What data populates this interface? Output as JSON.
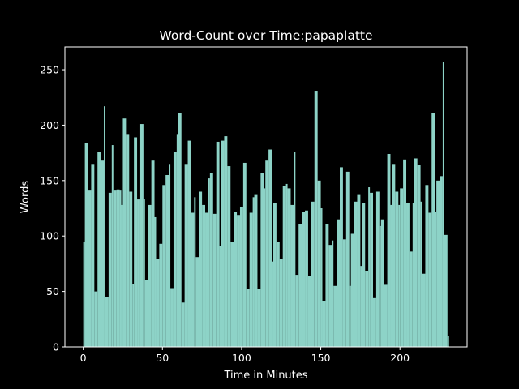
{
  "chart_data": {
    "type": "bar",
    "title": "Word-Count over Time:papaplatte",
    "xlabel": "Time in Minutes",
    "ylabel": "Words",
    "color": "#8dd3c7",
    "x": [
      0,
      1,
      3,
      5,
      7,
      9,
      11,
      13,
      14,
      16,
      18,
      19,
      21,
      23,
      24,
      25,
      27,
      29,
      31,
      32,
      34,
      36,
      38,
      39,
      41,
      43,
      45,
      46,
      48,
      50,
      52,
      54,
      55,
      57,
      59,
      60,
      62,
      64,
      66,
      68,
      70,
      71,
      73,
      75,
      77,
      79,
      80,
      82,
      84,
      86,
      87,
      89,
      91,
      93,
      95,
      97,
      99,
      101,
      103,
      105,
      107,
      108,
      110,
      112,
      114,
      115,
      117,
      119,
      120,
      122,
      124,
      126,
      128,
      129,
      131,
      133,
      134,
      136,
      138,
      140,
      142,
      144,
      146,
      148,
      150,
      151,
      153,
      155,
      157,
      158,
      160,
      162,
      164,
      166,
      168,
      169,
      171,
      173,
      175,
      176,
      178,
      180,
      181,
      183,
      185,
      187,
      188,
      190,
      192,
      194,
      195,
      197,
      199,
      200,
      202,
      204,
      206,
      208,
      209,
      211,
      213,
      214,
      216,
      218,
      220,
      222,
      223,
      225,
      227,
      228,
      230
    ],
    "values": [
      95,
      184,
      141,
      165,
      50,
      176,
      168,
      217,
      45,
      139,
      182,
      141,
      142,
      141,
      128,
      206,
      192,
      140,
      57,
      189,
      133,
      201,
      133,
      60,
      128,
      168,
      117,
      79,
      93,
      146,
      155,
      165,
      53,
      176,
      192,
      211,
      40,
      165,
      186,
      121,
      135,
      81,
      140,
      128,
      121,
      152,
      157,
      120,
      185,
      91,
      186,
      190,
      163,
      95,
      122,
      119,
      126,
      166,
      52,
      121,
      135,
      137,
      52,
      157,
      143,
      168,
      178,
      77,
      130,
      95,
      79,
      145,
      147,
      143,
      128,
      176,
      65,
      111,
      122,
      123,
      64,
      131,
      231,
      150,
      125,
      41,
      111,
      92,
      96,
      55,
      115,
      162,
      97,
      158,
      55,
      102,
      131,
      137,
      73,
      130,
      68,
      144,
      139,
      44,
      140,
      109,
      115,
      56,
      174,
      128,
      165,
      140,
      128,
      143,
      169,
      130,
      86,
      130,
      170,
      164,
      131,
      66,
      146,
      121,
      211,
      122,
      150,
      154,
      257,
      101,
      10
    ],
    "xlim": [
      -11.6,
      242.4
    ],
    "ylim": [
      0,
      270.5
    ],
    "xticks": [
      0,
      50,
      100,
      150,
      200
    ],
    "yticks": [
      0,
      50,
      100,
      150,
      200,
      250
    ]
  }
}
